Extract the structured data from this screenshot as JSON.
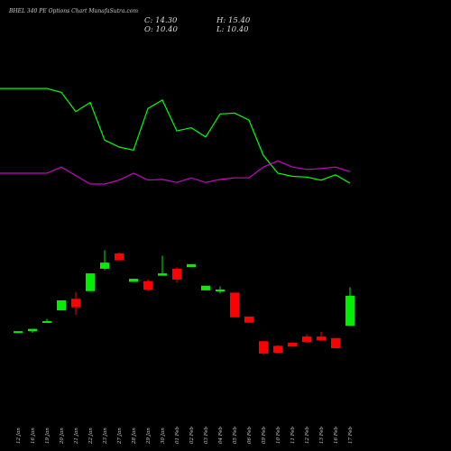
{
  "title": "BHEL 340  PE Options  Chart MunafaSutra.com",
  "ohlc": {
    "close_label": "C: 14.30",
    "high_label": "H: 15.40",
    "open_label": "O: 10.40",
    "low_label": "L: 10.40"
  },
  "colors": {
    "background": "#000000",
    "up": "#00ee00",
    "down": "#ff0000",
    "line_green": "#00ff00",
    "line_magenta": "#cc00cc"
  },
  "chart_data": {
    "type": "candlestick",
    "title": "BHEL 340  PE Options  Chart MunafaSutra.com",
    "categories": [
      "12 Jan",
      "16 Jan",
      "19 Jan",
      "20 Jan",
      "21 Jan",
      "22 Jan",
      "23 Jan",
      "27 Jan",
      "28 Jan",
      "29 Jan",
      "30 Jan",
      "01 Feb",
      "02 Feb",
      "03 Feb",
      "04 Feb",
      "05 Feb",
      "06 Feb",
      "09 Feb",
      "10 Feb",
      "11 Feb",
      "12 Feb",
      "13 Feb",
      "16 Feb",
      "17 Feb"
    ],
    "ylim": [
      0,
      48
    ],
    "candles": [
      {
        "open": 9.6,
        "high": 9.7,
        "low": 9.6,
        "close": 9.7
      },
      {
        "open": 9.7,
        "high": 10.0,
        "low": 9.5,
        "close": 10.0
      },
      {
        "open": 11.0,
        "high": 11.3,
        "low": 11.0,
        "close": 11.0
      },
      {
        "open": 12.4,
        "high": 13.7,
        "low": 12.4,
        "close": 13.7
      },
      {
        "open": 13.9,
        "high": 14.8,
        "low": 11.8,
        "close": 12.8
      },
      {
        "open": 14.9,
        "high": 17.2,
        "low": 14.9,
        "close": 17.2
      },
      {
        "open": 17.8,
        "high": 20.2,
        "low": 17.6,
        "close": 18.6
      },
      {
        "open": 19.8,
        "high": 19.9,
        "low": 18.9,
        "close": 18.9
      },
      {
        "open": 16.1,
        "high": 16.5,
        "low": 16.1,
        "close": 16.5
      },
      {
        "open": 16.2,
        "high": 16.4,
        "low": 14.9,
        "close": 15.1
      },
      {
        "open": 16.9,
        "high": 19.5,
        "low": 16.9,
        "close": 17.2
      },
      {
        "open": 17.8,
        "high": 18.0,
        "low": 16.0,
        "close": 16.4
      },
      {
        "open": 18.0,
        "high": 18.4,
        "low": 18.0,
        "close": 18.4
      },
      {
        "open": 15.0,
        "high": 15.6,
        "low": 15.0,
        "close": 15.6
      },
      {
        "open": 15.1,
        "high": 15.5,
        "low": 14.6,
        "close": 15.1
      },
      {
        "open": 14.7,
        "high": 14.7,
        "low": 11.5,
        "close": 11.5
      },
      {
        "open": 11.6,
        "high": 11.6,
        "low": 10.8,
        "close": 10.8
      },
      {
        "open": 8.4,
        "high": 8.4,
        "low": 6.6,
        "close": 6.8
      },
      {
        "open": 7.8,
        "high": 7.9,
        "low": 6.9,
        "close": 6.9
      },
      {
        "open": 8.2,
        "high": 8.2,
        "low": 7.7,
        "close": 7.7
      },
      {
        "open": 9.0,
        "high": 9.3,
        "low": 8.2,
        "close": 8.3
      },
      {
        "open": 9.0,
        "high": 9.6,
        "low": 8.4,
        "close": 8.5
      },
      {
        "open": 8.8,
        "high": 8.8,
        "low": 7.5,
        "close": 7.5
      },
      {
        "open": 10.4,
        "high": 15.4,
        "low": 10.4,
        "close": 14.3
      }
    ],
    "lines": [
      {
        "color": "#00ff00",
        "values": [
          null,
          null,
          41.2,
          40.7,
          38.2,
          39.4,
          34.5,
          33.6,
          33.2,
          38.6,
          39.7,
          35.7,
          36.1,
          34.9,
          37.9,
          38.0,
          37.1,
          32.5,
          30.2,
          29.8,
          29.7,
          29.3,
          30.0,
          28.9
        ]
      },
      {
        "color": "#cc00cc",
        "values": [
          null,
          null,
          30.2,
          31.0,
          29.9,
          28.8,
          28.8,
          29.3,
          30.2,
          29.3,
          29.4,
          29.0,
          29.6,
          29.0,
          29.4,
          29.6,
          29.6,
          31.0,
          31.8,
          31.0,
          30.7,
          30.8,
          31.0,
          30.4
        ]
      }
    ],
    "legend": "none",
    "grid": false
  }
}
